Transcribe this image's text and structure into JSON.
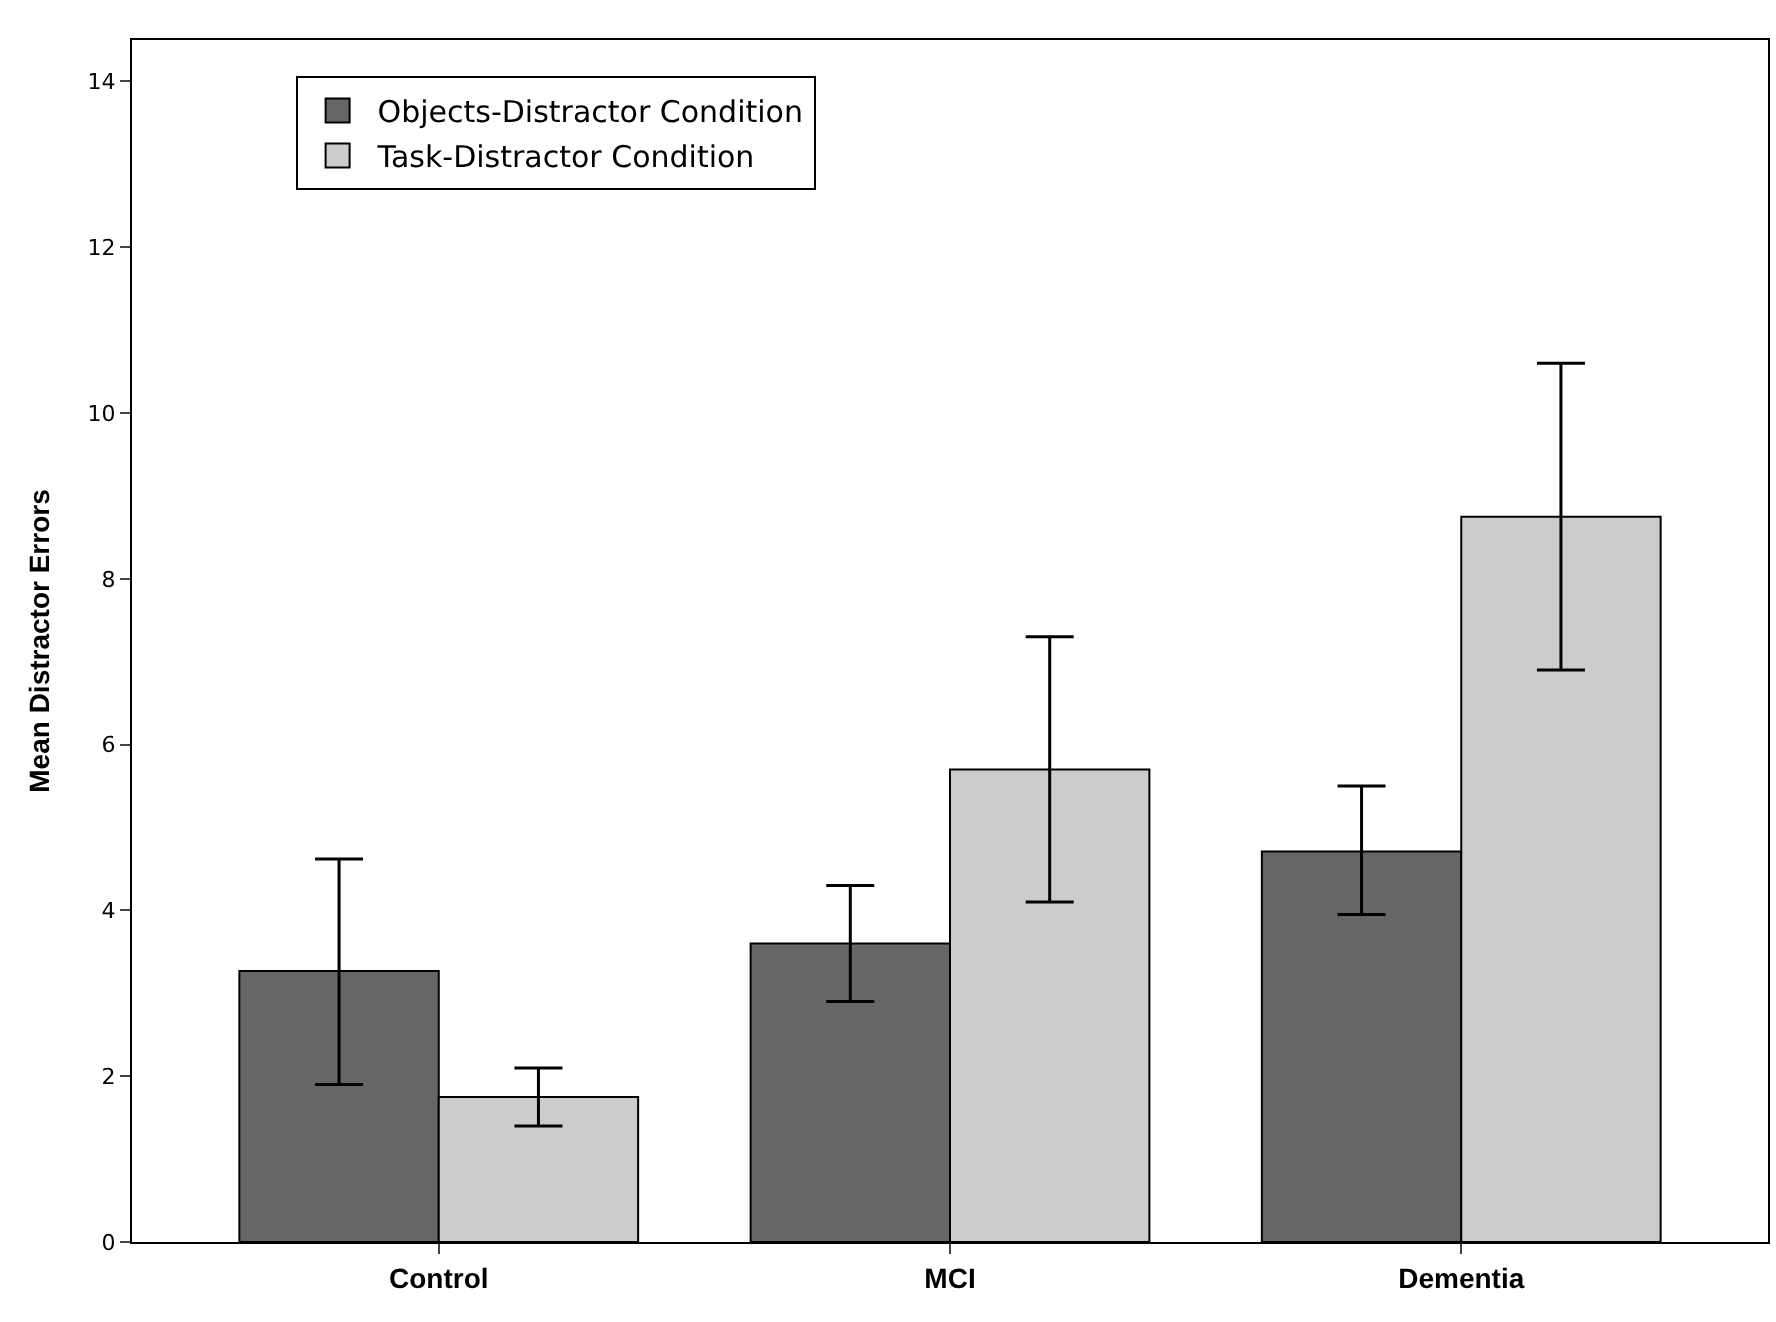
{
  "chart_data": {
    "type": "bar",
    "ylabel": "Mean Distractor Errors",
    "categories": [
      "Control",
      "MCI",
      "Dementia"
    ],
    "series": [
      {
        "name": "Objects-Distractor Condition",
        "color": "#666666",
        "values": [
          3.27,
          3.6,
          4.71
        ],
        "errors": [
          [
            1.9,
            4.62
          ],
          [
            2.9,
            4.3
          ],
          [
            3.95,
            5.5
          ]
        ]
      },
      {
        "name": "Task-Distractor Condition",
        "color": "#cccccc",
        "values": [
          1.75,
          5.7,
          8.75
        ],
        "errors": [
          [
            1.4,
            2.1
          ],
          [
            4.1,
            7.3
          ],
          [
            6.9,
            10.6
          ]
        ]
      }
    ],
    "ylim": [
      0,
      14.5
    ],
    "yticks": [
      0,
      2,
      4,
      6,
      8,
      10,
      12,
      14
    ],
    "legend": "top left"
  }
}
